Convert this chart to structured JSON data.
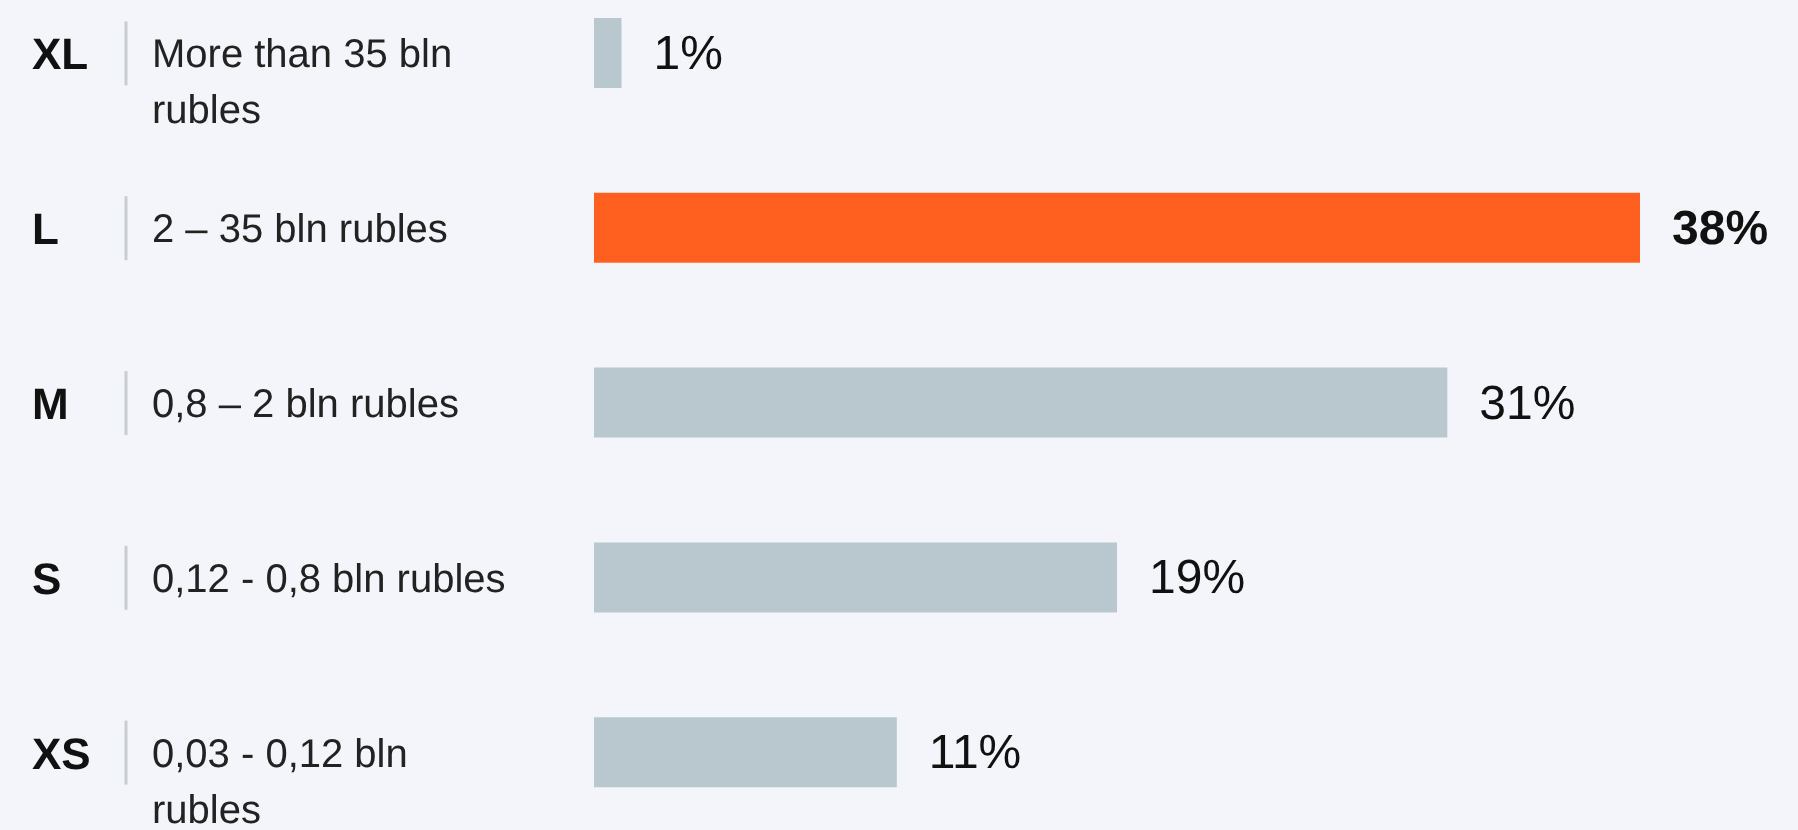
{
  "chart_data": {
    "type": "bar",
    "orientation": "horizontal",
    "categories": [
      "More than 35 bln rubles",
      "2 – 35 bln rubles",
      "0,8 – 2  bln rubles",
      "0,12 - 0,8 bln rubles",
      "0,03 - 0,12 bln rubles"
    ],
    "annotations": [
      "XL",
      "L",
      "M",
      "S",
      "XS"
    ],
    "values": [
      1,
      38,
      31,
      19,
      11
    ],
    "colors": [
      "#b9c8cf",
      "#ff5f1f",
      "#b9c8cf",
      "#b9c8cf",
      "#b9c8cf"
    ],
    "value_labels": [
      "1%",
      "38%",
      "31%",
      "19%",
      "11%"
    ]
  }
}
